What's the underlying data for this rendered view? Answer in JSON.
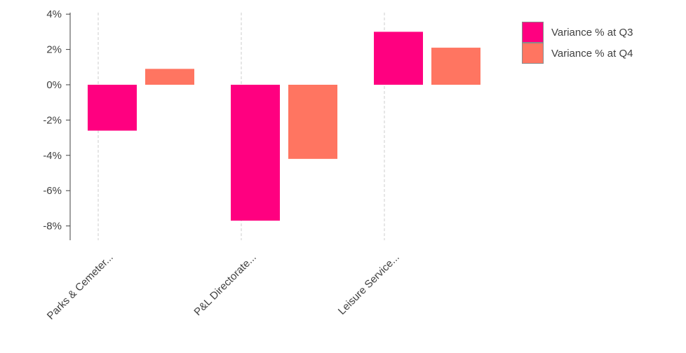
{
  "chart_data": {
    "type": "bar",
    "categories": [
      "Parks & Cemeter...",
      "P&L Directorate...",
      "Leisure Service..."
    ],
    "series": [
      {
        "name": "Variance % at Q3",
        "values": [
          -2.6,
          -7.7,
          3.0
        ],
        "color": "#ff0080"
      },
      {
        "name": "Variance % at Q4",
        "values": [
          0.9,
          -4.2,
          2.1
        ],
        "color": "#ff7561"
      }
    ],
    "yticks": [
      "4%",
      "2%",
      "0%",
      "-2%",
      "-4%",
      "-6%",
      "-8%"
    ],
    "ytick_values": [
      4,
      2,
      0,
      -2,
      -4,
      -6,
      -8
    ],
    "ylim": [
      -8.8,
      4.4
    ],
    "grid": "vertical-dashed",
    "legend": "top-right"
  }
}
